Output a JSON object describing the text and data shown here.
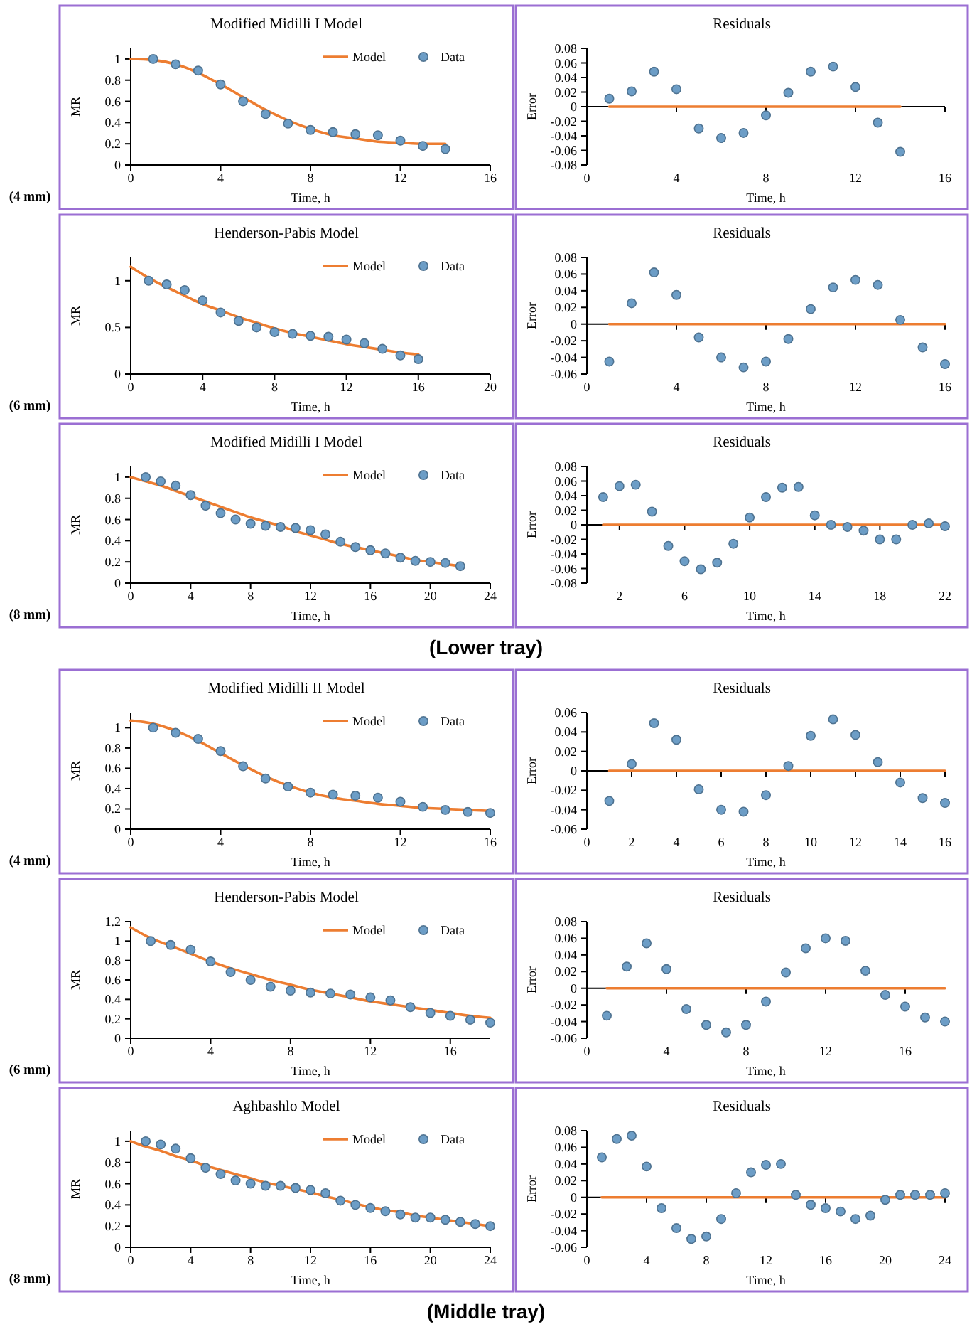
{
  "chart_data": [
    {
      "type": "scatter",
      "title": "Modified Midilli I Model",
      "xlabel": "Time, h",
      "ylabel": "MR",
      "xlim": [
        0,
        16
      ],
      "ylim": [
        0,
        1.1
      ],
      "xticks": [
        0,
        4,
        8,
        12,
        16
      ],
      "yticks": [
        0,
        0.2,
        0.4,
        0.6,
        0.8,
        1
      ],
      "legend": "top right",
      "marker": "circle",
      "annotations": [
        "(4 mm)"
      ],
      "series": [
        {
          "name": "Model",
          "type": "line",
          "marker": "none",
          "color": "#ed7d31",
          "x": [
            0,
            1,
            2,
            3,
            4,
            5,
            6,
            7,
            8,
            9,
            10,
            11,
            12,
            13,
            14
          ],
          "values": [
            1.0,
            0.99,
            0.95,
            0.87,
            0.76,
            0.64,
            0.52,
            0.42,
            0.34,
            0.28,
            0.25,
            0.22,
            0.21,
            0.2,
            0.2
          ]
        },
        {
          "name": "Data",
          "color": "#6c9dc6",
          "x": [
            1,
            2,
            3,
            4,
            5,
            6,
            7,
            8,
            9,
            10,
            11,
            12,
            13,
            14
          ],
          "values": [
            1.0,
            0.95,
            0.89,
            0.76,
            0.6,
            0.48,
            0.39,
            0.33,
            0.31,
            0.29,
            0.28,
            0.23,
            0.18,
            0.15
          ]
        }
      ]
    },
    {
      "type": "scatter",
      "title": "Residuals",
      "xlabel": "Time, h",
      "ylabel": "Error",
      "xlim": [
        0,
        16
      ],
      "ylim": [
        -0.08,
        0.08
      ],
      "xticks": [
        0,
        4,
        8,
        12,
        16
      ],
      "yticks": [
        -0.08,
        -0.06,
        -0.04,
        -0.02,
        0,
        0.02,
        0.04,
        0.06,
        0.08
      ],
      "marker": "circle",
      "series": [
        {
          "type": "line",
          "marker": "none",
          "color": "#ed7d31",
          "x": [
            1,
            14
          ],
          "values": [
            0,
            0
          ]
        },
        {
          "color": "#6c9dc6",
          "x": [
            1,
            2,
            3,
            4,
            5,
            6,
            7,
            8,
            9,
            10,
            11,
            12,
            13,
            14
          ],
          "values": [
            0.011,
            0.021,
            0.048,
            0.024,
            -0.03,
            -0.043,
            -0.036,
            -0.012,
            0.019,
            0.048,
            0.055,
            0.027,
            -0.022,
            -0.062
          ]
        }
      ]
    },
    {
      "type": "scatter",
      "title": "Henderson-Pabis  Model",
      "xlabel": "Time, h",
      "ylabel": "MR",
      "xlim": [
        0,
        20
      ],
      "ylim": [
        0,
        1.25
      ],
      "xticks": [
        0,
        4,
        8,
        12,
        16,
        20
      ],
      "yticks": [
        0,
        0.5,
        1
      ],
      "legend": "top right",
      "marker": "circle",
      "annotations": [
        "(6 mm)"
      ],
      "series": [
        {
          "name": "Model",
          "type": "line",
          "marker": "none",
          "color": "#ed7d31",
          "x": [
            0,
            1,
            2,
            3,
            4,
            5,
            6,
            7,
            8,
            9,
            10,
            11,
            12,
            13,
            14,
            15,
            16
          ],
          "values": [
            1.15,
            1.03,
            0.93,
            0.84,
            0.75,
            0.68,
            0.61,
            0.55,
            0.49,
            0.44,
            0.4,
            0.36,
            0.32,
            0.29,
            0.26,
            0.23,
            0.21
          ]
        },
        {
          "name": "Data",
          "color": "#6c9dc6",
          "x": [
            1,
            2,
            3,
            4,
            5,
            6,
            7,
            8,
            9,
            10,
            11,
            12,
            13,
            14,
            15,
            16
          ],
          "values": [
            1.0,
            0.96,
            0.9,
            0.79,
            0.66,
            0.57,
            0.5,
            0.45,
            0.43,
            0.41,
            0.4,
            0.37,
            0.33,
            0.27,
            0.2,
            0.16
          ]
        }
      ]
    },
    {
      "type": "scatter",
      "title": "Residuals",
      "xlabel": "Time, h",
      "ylabel": "Error",
      "xlim": [
        0,
        16
      ],
      "ylim": [
        -0.06,
        0.08
      ],
      "xticks": [
        0,
        4,
        8,
        12,
        16
      ],
      "yticks": [
        -0.06,
        -0.04,
        -0.02,
        0,
        0.02,
        0.04,
        0.06,
        0.08
      ],
      "marker": "circle",
      "series": [
        {
          "type": "line",
          "marker": "none",
          "color": "#ed7d31",
          "x": [
            1,
            16
          ],
          "values": [
            0,
            0
          ]
        },
        {
          "color": "#6c9dc6",
          "x": [
            1,
            2,
            3,
            4,
            5,
            6,
            7,
            8,
            9,
            10,
            11,
            12,
            13,
            14,
            15,
            16
          ],
          "values": [
            -0.045,
            0.025,
            0.062,
            0.035,
            -0.016,
            -0.04,
            -0.052,
            -0.045,
            -0.018,
            0.018,
            0.044,
            0.053,
            0.047,
            0.005,
            -0.028,
            -0.048
          ]
        }
      ]
    },
    {
      "type": "scatter",
      "title": "Modified Midilli I Model",
      "xlabel": "Time, h",
      "ylabel": "MR",
      "xlim": [
        0,
        24
      ],
      "ylim": [
        0,
        1.1
      ],
      "xticks": [
        0,
        4,
        8,
        12,
        16,
        20,
        24
      ],
      "yticks": [
        0,
        0.2,
        0.4,
        0.6,
        0.8,
        1
      ],
      "legend": "top right",
      "marker": "circle",
      "annotations": [
        "(8 mm)",
        "(Lower tray)"
      ],
      "series": [
        {
          "name": "Model",
          "type": "line",
          "marker": "none",
          "color": "#ed7d31",
          "x": [
            0,
            1,
            2,
            3,
            4,
            5,
            6,
            7,
            8,
            9,
            10,
            11,
            12,
            13,
            14,
            15,
            16,
            17,
            18,
            19,
            20,
            21,
            22
          ],
          "values": [
            1.0,
            0.96,
            0.92,
            0.87,
            0.82,
            0.77,
            0.72,
            0.67,
            0.62,
            0.58,
            0.54,
            0.49,
            0.45,
            0.41,
            0.37,
            0.34,
            0.31,
            0.28,
            0.25,
            0.22,
            0.2,
            0.18,
            0.16
          ]
        },
        {
          "name": "Data",
          "color": "#6c9dc6",
          "x": [
            1,
            2,
            3,
            4,
            5,
            6,
            7,
            8,
            9,
            10,
            11,
            12,
            13,
            14,
            15,
            16,
            17,
            18,
            19,
            20,
            21,
            22
          ],
          "values": [
            1.0,
            0.96,
            0.92,
            0.83,
            0.73,
            0.66,
            0.6,
            0.56,
            0.54,
            0.53,
            0.52,
            0.5,
            0.46,
            0.39,
            0.34,
            0.31,
            0.28,
            0.24,
            0.21,
            0.2,
            0.19,
            0.16
          ]
        }
      ]
    },
    {
      "type": "scatter",
      "title": "Residuals",
      "xlabel": "Time, h",
      "ylabel": "Error",
      "xlim": [
        0,
        22
      ],
      "ylim": [
        -0.08,
        0.08
      ],
      "xticks": [
        2,
        6,
        10,
        14,
        18,
        22
      ],
      "yticks": [
        -0.08,
        -0.06,
        -0.04,
        -0.02,
        0,
        0.02,
        0.04,
        0.06,
        0.08
      ],
      "marker": "circle",
      "series": [
        {
          "type": "line",
          "marker": "none",
          "color": "#ed7d31",
          "x": [
            1,
            22
          ],
          "values": [
            0,
            0
          ]
        },
        {
          "color": "#6c9dc6",
          "x": [
            1,
            2,
            3,
            4,
            5,
            6,
            7,
            8,
            9,
            10,
            11,
            12,
            13,
            14,
            15,
            16,
            17,
            18,
            19,
            20,
            21,
            22
          ],
          "values": [
            0.038,
            0.053,
            0.055,
            0.018,
            -0.029,
            -0.05,
            -0.061,
            -0.052,
            -0.026,
            0.01,
            0.038,
            0.051,
            0.052,
            0.013,
            0.0,
            -0.003,
            -0.008,
            -0.02,
            -0.02,
            0.0,
            0.002,
            -0.002
          ]
        }
      ]
    },
    {
      "type": "scatter",
      "title": "Modified Midilli II Model",
      "xlabel": "Time, h",
      "ylabel": "MR",
      "xlim": [
        0,
        16
      ],
      "ylim": [
        0,
        1.15
      ],
      "xticks": [
        0,
        4,
        8,
        12,
        16
      ],
      "yticks": [
        0,
        0.2,
        0.4,
        0.6,
        0.8,
        1
      ],
      "legend": "top right",
      "marker": "circle",
      "annotations": [
        "(4 mm)"
      ],
      "series": [
        {
          "name": "Model",
          "type": "line",
          "marker": "none",
          "color": "#ed7d31",
          "x": [
            0,
            1,
            2,
            3,
            4,
            5,
            6,
            7,
            8,
            9,
            10,
            11,
            12,
            13,
            14,
            15,
            16
          ],
          "values": [
            1.07,
            1.04,
            0.97,
            0.87,
            0.75,
            0.63,
            0.52,
            0.43,
            0.36,
            0.31,
            0.28,
            0.25,
            0.23,
            0.21,
            0.2,
            0.19,
            0.18
          ]
        },
        {
          "name": "Data",
          "color": "#6c9dc6",
          "x": [
            1,
            2,
            3,
            4,
            5,
            6,
            7,
            8,
            9,
            10,
            11,
            12,
            13,
            14,
            15,
            16
          ],
          "values": [
            1.0,
            0.95,
            0.89,
            0.77,
            0.62,
            0.5,
            0.42,
            0.36,
            0.34,
            0.33,
            0.31,
            0.27,
            0.22,
            0.19,
            0.17,
            0.16
          ]
        }
      ]
    },
    {
      "type": "scatter",
      "title": "Residuals",
      "xlabel": "Time, h",
      "ylabel": "Error",
      "xlim": [
        0,
        16
      ],
      "ylim": [
        -0.06,
        0.06
      ],
      "xticks": [
        0,
        2,
        4,
        6,
        8,
        10,
        12,
        14,
        16
      ],
      "yticks": [
        -0.06,
        -0.04,
        -0.02,
        0,
        0.02,
        0.04,
        0.06
      ],
      "marker": "circle",
      "series": [
        {
          "type": "line",
          "marker": "none",
          "color": "#ed7d31",
          "x": [
            1,
            16
          ],
          "values": [
            0,
            0
          ]
        },
        {
          "color": "#6c9dc6",
          "x": [
            1,
            2,
            3,
            4,
            5,
            6,
            7,
            8,
            9,
            10,
            11,
            12,
            13,
            14,
            15,
            16
          ],
          "values": [
            -0.031,
            0.007,
            0.049,
            0.032,
            -0.019,
            -0.04,
            -0.042,
            -0.025,
            0.005,
            0.036,
            0.053,
            0.037,
            0.009,
            -0.012,
            -0.028,
            -0.033
          ]
        }
      ]
    },
    {
      "type": "scatter",
      "title": "Henderson-Pabis  Model",
      "xlabel": "Time, h",
      "ylabel": "MR",
      "xlim": [
        0,
        18
      ],
      "ylim": [
        0,
        1.2
      ],
      "xticks": [
        0,
        4,
        8,
        12,
        16
      ],
      "yticks": [
        0,
        0.2,
        0.4,
        0.6,
        0.8,
        1,
        1.2
      ],
      "legend": "top right",
      "marker": "circle",
      "annotations": [
        "(6 mm)"
      ],
      "series": [
        {
          "name": "Model",
          "type": "line",
          "marker": "none",
          "color": "#ed7d31",
          "x": [
            0,
            1,
            2,
            3,
            4,
            5,
            6,
            7,
            8,
            9,
            10,
            11,
            12,
            13,
            14,
            15,
            16,
            17,
            18
          ],
          "values": [
            1.14,
            1.03,
            0.95,
            0.87,
            0.79,
            0.72,
            0.66,
            0.6,
            0.55,
            0.5,
            0.46,
            0.42,
            0.38,
            0.35,
            0.32,
            0.29,
            0.26,
            0.23,
            0.21
          ]
        },
        {
          "name": "Data",
          "color": "#6c9dc6",
          "x": [
            1,
            2,
            3,
            4,
            5,
            6,
            7,
            8,
            9,
            10,
            11,
            12,
            13,
            14,
            15,
            16,
            17,
            18
          ],
          "values": [
            1.0,
            0.96,
            0.91,
            0.79,
            0.68,
            0.6,
            0.53,
            0.49,
            0.47,
            0.46,
            0.45,
            0.42,
            0.39,
            0.32,
            0.26,
            0.23,
            0.19,
            0.16
          ]
        }
      ]
    },
    {
      "type": "scatter",
      "title": "Residuals",
      "xlabel": "Time, h",
      "ylabel": "Error",
      "xlim": [
        0,
        18
      ],
      "ylim": [
        -0.06,
        0.08
      ],
      "xticks": [
        0,
        4,
        8,
        12,
        16
      ],
      "yticks": [
        -0.06,
        -0.04,
        -0.02,
        0,
        0.02,
        0.04,
        0.06,
        0.08
      ],
      "marker": "circle",
      "series": [
        {
          "type": "line",
          "marker": "none",
          "color": "#ed7d31",
          "x": [
            1,
            18
          ],
          "values": [
            0,
            0
          ]
        },
        {
          "color": "#6c9dc6",
          "x": [
            1,
            2,
            3,
            4,
            5,
            6,
            7,
            8,
            9,
            10,
            11,
            12,
            13,
            14,
            15,
            16,
            17,
            18
          ],
          "values": [
            -0.033,
            0.026,
            0.054,
            0.023,
            -0.025,
            -0.044,
            -0.053,
            -0.044,
            -0.016,
            0.019,
            0.048,
            0.06,
            0.057,
            0.021,
            -0.008,
            -0.022,
            -0.035,
            -0.04
          ]
        }
      ]
    },
    {
      "type": "scatter",
      "title": "Aghbashlo  Model",
      "xlabel": "Time, h",
      "ylabel": "MR",
      "xlim": [
        0,
        24
      ],
      "ylim": [
        0,
        1.1
      ],
      "xticks": [
        0,
        4,
        8,
        12,
        16,
        20,
        24
      ],
      "yticks": [
        0,
        0.2,
        0.4,
        0.6,
        0.8,
        1
      ],
      "legend": "top right",
      "marker": "circle",
      "annotations": [
        "(8 mm)",
        "(Middle tray)"
      ],
      "series": [
        {
          "name": "Model",
          "type": "line",
          "marker": "none",
          "color": "#ed7d31",
          "x": [
            0,
            1,
            2,
            3,
            4,
            5,
            6,
            7,
            8,
            9,
            10,
            11,
            12,
            13,
            14,
            15,
            16,
            17,
            18,
            19,
            20,
            21,
            22,
            23,
            24
          ],
          "values": [
            1.0,
            0.95,
            0.91,
            0.86,
            0.82,
            0.77,
            0.73,
            0.69,
            0.65,
            0.61,
            0.58,
            0.55,
            0.52,
            0.48,
            0.45,
            0.41,
            0.38,
            0.35,
            0.33,
            0.3,
            0.28,
            0.26,
            0.24,
            0.22,
            0.2
          ]
        },
        {
          "name": "Data",
          "color": "#6c9dc6",
          "x": [
            1,
            2,
            3,
            4,
            5,
            6,
            7,
            8,
            9,
            10,
            11,
            12,
            13,
            14,
            15,
            16,
            17,
            18,
            19,
            20,
            21,
            22,
            23,
            24
          ],
          "values": [
            1.0,
            0.97,
            0.93,
            0.84,
            0.75,
            0.69,
            0.63,
            0.6,
            0.58,
            0.58,
            0.56,
            0.54,
            0.51,
            0.44,
            0.4,
            0.37,
            0.34,
            0.31,
            0.28,
            0.28,
            0.26,
            0.24,
            0.22,
            0.2
          ]
        }
      ]
    },
    {
      "type": "scatter",
      "title": "Residuals",
      "xlabel": "Time, h",
      "ylabel": "Error",
      "xlim": [
        0,
        24
      ],
      "ylim": [
        -0.06,
        0.08
      ],
      "xticks": [
        0,
        4,
        8,
        12,
        16,
        20,
        24
      ],
      "yticks": [
        -0.06,
        -0.04,
        -0.02,
        0,
        0.02,
        0.04,
        0.06,
        0.08
      ],
      "marker": "circle",
      "series": [
        {
          "type": "line",
          "marker": "none",
          "color": "#ed7d31",
          "x": [
            1,
            24
          ],
          "values": [
            0,
            0
          ]
        },
        {
          "color": "#6c9dc6",
          "x": [
            1,
            2,
            3,
            4,
            5,
            6,
            7,
            8,
            9,
            10,
            11,
            12,
            13,
            14,
            15,
            16,
            17,
            18,
            19,
            20,
            21,
            22,
            23,
            24
          ],
          "values": [
            0.048,
            0.07,
            0.074,
            0.037,
            -0.013,
            -0.037,
            -0.05,
            -0.047,
            -0.026,
            0.005,
            0.03,
            0.039,
            0.04,
            0.003,
            -0.009,
            -0.013,
            -0.017,
            -0.026,
            -0.022,
            -0.003,
            0.003,
            0.003,
            0.003,
            0.005
          ]
        }
      ]
    }
  ]
}
